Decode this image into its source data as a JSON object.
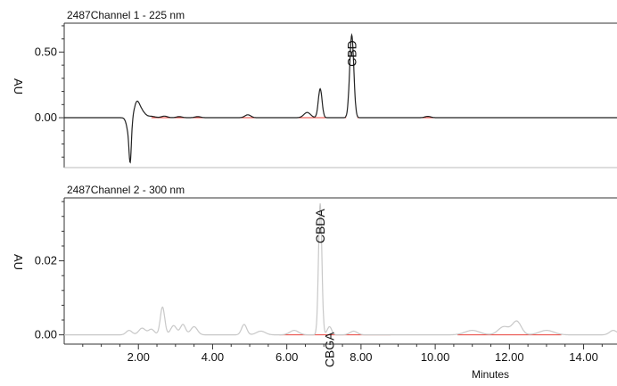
{
  "chart_data": [
    {
      "type": "line",
      "title": "2487Channel 1 - 225 nm",
      "ylabel": "AU",
      "xlim": [
        0.0,
        14.9
      ],
      "ylim": [
        -0.38,
        0.72
      ],
      "yticks": [
        {
          "value": 0.5,
          "label": "0.50"
        },
        {
          "value": 0.0,
          "label": "0.00"
        }
      ],
      "series": [
        {
          "color": "#222222",
          "baseline": 0.0,
          "x_end": 14.9,
          "peaks": [
            {
              "x": 1.75,
              "h": -0.12,
              "w": 0.06
            },
            {
              "x": 1.78,
              "h": -0.24,
              "w": 0.03
            },
            {
              "x": 1.95,
              "h": 0.09,
              "w": 0.07
            },
            {
              "x": 2.06,
              "h": 0.06,
              "w": 0.1
            },
            {
              "x": 2.35,
              "h": 0.01,
              "w": 0.1
            },
            {
              "x": 2.7,
              "h": 0.012,
              "w": 0.08
            },
            {
              "x": 3.1,
              "h": 0.008,
              "w": 0.08
            },
            {
              "x": 3.6,
              "h": 0.008,
              "w": 0.08
            },
            {
              "x": 4.95,
              "h": 0.022,
              "w": 0.08
            },
            {
              "x": 6.55,
              "h": 0.04,
              "w": 0.09
            },
            {
              "x": 6.9,
              "h": 0.22,
              "w": 0.05
            },
            {
              "x": 7.75,
              "h": 0.63,
              "w": 0.055
            },
            {
              "x": 9.8,
              "h": 0.01,
              "w": 0.08
            }
          ]
        }
      ],
      "baseline_markers": {
        "color": "#e8413a",
        "y": 0.0,
        "segments": [
          [
            2.35,
            7.6
          ],
          [
            7.9,
            11.2
          ],
          [
            11.9,
            13.5
          ]
        ]
      },
      "annotations": [
        {
          "text": "CBD",
          "x": 7.75,
          "y": 0.63
        }
      ]
    },
    {
      "type": "line",
      "title": "2487Channel 2 - 300 nm",
      "ylabel": "AU",
      "xlabel": "Minutes",
      "xlim": [
        0.0,
        14.9
      ],
      "ylim": [
        -0.0025,
        0.037
      ],
      "yticks": [
        {
          "value": 0.02,
          "label": "0.02"
        },
        {
          "value": 0.0,
          "label": "0.00"
        }
      ],
      "xticks": [
        {
          "value": 2,
          "label": "2.00"
        },
        {
          "value": 4,
          "label": "4.00"
        },
        {
          "value": 6,
          "label": "6.00"
        },
        {
          "value": 8,
          "label": "8.00"
        },
        {
          "value": 10,
          "label": "10.00"
        },
        {
          "value": 12,
          "label": "12.00"
        },
        {
          "value": 14,
          "label": "14.00"
        }
      ],
      "series": [
        {
          "color": "#c8c8c8",
          "baseline": 0.0,
          "x_end": 14.9,
          "peaks": [
            {
              "x": 1.75,
              "h": 0.0012,
              "w": 0.08
            },
            {
              "x": 2.1,
              "h": 0.0018,
              "w": 0.09
            },
            {
              "x": 2.35,
              "h": 0.0015,
              "w": 0.08
            },
            {
              "x": 2.65,
              "h": 0.0075,
              "w": 0.06
            },
            {
              "x": 2.95,
              "h": 0.0025,
              "w": 0.08
            },
            {
              "x": 3.2,
              "h": 0.0028,
              "w": 0.07
            },
            {
              "x": 3.5,
              "h": 0.0022,
              "w": 0.09
            },
            {
              "x": 4.85,
              "h": 0.0028,
              "w": 0.07
            },
            {
              "x": 5.3,
              "h": 0.001,
              "w": 0.12
            },
            {
              "x": 6.2,
              "h": 0.0012,
              "w": 0.12
            },
            {
              "x": 6.9,
              "h": 0.0355,
              "w": 0.045
            },
            {
              "x": 7.15,
              "h": 0.0022,
              "w": 0.06
            },
            {
              "x": 7.8,
              "h": 0.001,
              "w": 0.1
            },
            {
              "x": 11.0,
              "h": 0.0012,
              "w": 0.2
            },
            {
              "x": 11.85,
              "h": 0.0022,
              "w": 0.15
            },
            {
              "x": 12.2,
              "h": 0.0036,
              "w": 0.12
            },
            {
              "x": 13.0,
              "h": 0.0012,
              "w": 0.2
            },
            {
              "x": 14.8,
              "h": 0.0012,
              "w": 0.1
            }
          ]
        }
      ],
      "baseline_markers": {
        "color": "#e8413a",
        "y": 0.0,
        "segments": [
          [
            5.8,
            8.8
          ],
          [
            10.6,
            13.4
          ]
        ]
      },
      "annotations": [
        {
          "text": "CBDA",
          "x": 6.9,
          "y": 0.0355
        },
        {
          "text": "CBGA",
          "x": 7.15,
          "y": 0.0022
        }
      ]
    }
  ]
}
